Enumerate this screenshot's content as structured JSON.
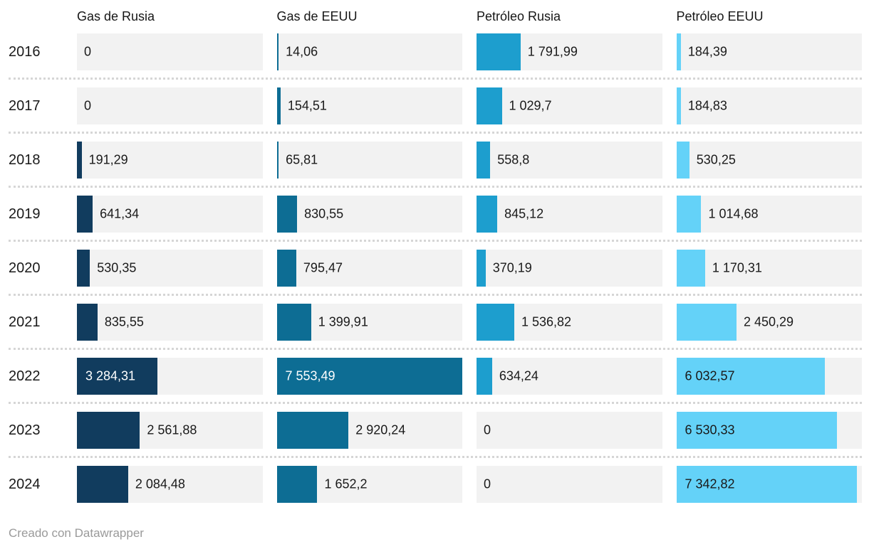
{
  "chart_data": {
    "type": "bar",
    "layout": "horizontal-small-multiples",
    "title": "",
    "xlabel": "",
    "ylabel": "",
    "grid": false,
    "legend_position": "column-headers",
    "xmax": 7553.49,
    "value_format": "es-ES (coma decimal, espacio de miles)",
    "categories": [
      "2016",
      "2017",
      "2018",
      "2019",
      "2020",
      "2021",
      "2022",
      "2023",
      "2024"
    ],
    "series": [
      {
        "name": "Gas de Rusia",
        "color": "#113c5e",
        "label_inside_color": "#ffffff",
        "values": [
          0,
          0,
          191.29,
          641.34,
          530.35,
          835.55,
          3284.31,
          2561.88,
          2084.48
        ],
        "labels": [
          "0",
          "0",
          "191,29",
          "641,34",
          "530,35",
          "835,55",
          "3 284,31",
          "2 561,88",
          "2 084,48"
        ]
      },
      {
        "name": "Gas de EEUU",
        "color": "#0d6d94",
        "label_inside_color": "#ffffff",
        "values": [
          14.06,
          154.51,
          65.81,
          830.55,
          795.47,
          1399.91,
          7553.49,
          2920.24,
          1652.2
        ],
        "labels": [
          "14,06",
          "154,51",
          "65,81",
          "830,55",
          "795,47",
          "1 399,91",
          "7 553,49",
          "2 920,24",
          "1 652,2"
        ]
      },
      {
        "name": "Petróleo Rusia",
        "color": "#1d9ece",
        "label_inside_color": "#ffffff",
        "values": [
          1791.99,
          1029.7,
          558.8,
          845.12,
          370.19,
          1536.82,
          634.24,
          0,
          0
        ],
        "labels": [
          "1 791,99",
          "1 029,7",
          "558,8",
          "845,12",
          "370,19",
          "1 536,82",
          "634,24",
          "0",
          "0"
        ]
      },
      {
        "name": "Petróleo EEUU",
        "color": "#64d2f8",
        "label_inside_color": "#1a1a1a",
        "values": [
          184.39,
          184.83,
          530.25,
          1014.68,
          1170.31,
          2450.29,
          6032.57,
          6530.33,
          7342.82
        ],
        "labels": [
          "184,39",
          "184,83",
          "530,25",
          "1 014,68",
          "1 170,31",
          "2 450,29",
          "6 032,57",
          "6 530,33",
          "7 342,82"
        ]
      }
    ]
  },
  "colors": {
    "track": "#f2f2f2",
    "separator": "#d6d6d6",
    "text": "#1a1a1a",
    "footer_text": "#9a9a9a"
  },
  "footer": {
    "credit": "Creado con Datawrapper"
  }
}
